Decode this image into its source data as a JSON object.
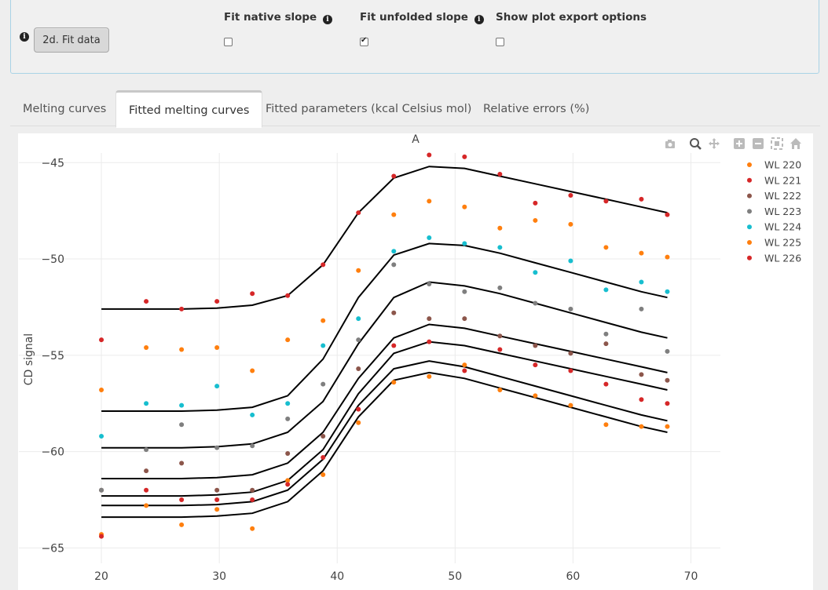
{
  "controls": {
    "fit_button_label": "2d. Fit data",
    "options": [
      {
        "label": "Fit native slope",
        "checked": false,
        "has_info": true
      },
      {
        "label": "Fit unfolded slope",
        "checked": true,
        "has_info": true
      },
      {
        "label": "Show plot export options",
        "checked": false,
        "has_info": false
      }
    ]
  },
  "tabs": [
    {
      "label": "Melting curves",
      "active": false
    },
    {
      "label": "Fitted melting curves",
      "active": true
    },
    {
      "label": "Fitted parameters (kcal Celsius mol)",
      "active": false
    },
    {
      "label": "Relative errors (%)",
      "active": false
    }
  ],
  "modebar": [
    "camera-icon",
    "zoom-icon",
    "pan-icon",
    "zoom-in-icon",
    "zoom-out-icon",
    "autoscale-icon",
    "reset-axes-icon"
  ],
  "chart_data": {
    "type": "scatter",
    "title": "A",
    "xlabel": "",
    "ylabel": "CD signal",
    "xlim": [
      13,
      72.5
    ],
    "ylim": [
      -65.8,
      -44.5
    ],
    "xticks": [
      20,
      30,
      40,
      50,
      60,
      70
    ],
    "yticks": [
      -45,
      -50,
      -55,
      -60,
      -65
    ],
    "grid": true,
    "legend_position": "top-right",
    "x": [
      20,
      23.8,
      26.8,
      29.8,
      32.8,
      35.8,
      38.8,
      41.8,
      44.8,
      47.8,
      50.8,
      53.8,
      56.8,
      59.8,
      62.8,
      65.8,
      68.0
    ],
    "series": [
      {
        "name": "WL 220",
        "color": "#ff7f0e",
        "values": [
          -64.3,
          -62.8,
          -63.8,
          -63.0,
          -64.0,
          -61.5,
          -61.2,
          -58.5,
          -56.4,
          -56.1,
          -55.5,
          -56.8,
          -57.1,
          -57.6,
          -58.6,
          -58.7,
          -58.7
        ],
        "fit": [
          -63.4,
          -63.4,
          -63.4,
          -63.35,
          -63.2,
          -62.6,
          -61.0,
          -58.2,
          -56.3,
          -55.9,
          -56.2,
          -56.7,
          -57.2,
          -57.7,
          -58.2,
          -58.7,
          -59.0
        ]
      },
      {
        "name": "WL 221",
        "color": "#d62728",
        "values": [
          -64.4,
          -62.0,
          -62.5,
          -62.5,
          -62.5,
          -61.7,
          -60.3,
          -57.8,
          -54.5,
          -54.3,
          -55.8,
          -54.7,
          -55.5,
          -55.8,
          -56.5,
          -57.3,
          -57.5
        ],
        "fit": [
          -62.8,
          -62.8,
          -62.8,
          -62.75,
          -62.6,
          -62.0,
          -60.4,
          -57.6,
          -55.7,
          -55.3,
          -55.6,
          -56.1,
          -56.6,
          -57.1,
          -57.6,
          -58.1,
          -58.4
        ]
      },
      {
        "name": "WL 222",
        "color": "#8c564b",
        "values": [
          -62.0,
          -61.0,
          -60.6,
          -62.0,
          -62.0,
          -60.1,
          -59.2,
          -55.7,
          -52.8,
          -53.1,
          -53.1,
          -54.0,
          -54.5,
          -54.9,
          -54.4,
          -56.0,
          -56.3
        ],
        "fit": [
          -62.3,
          -62.3,
          -62.3,
          -62.25,
          -62.1,
          -61.5,
          -59.9,
          -57.0,
          -54.9,
          -54.3,
          -54.5,
          -54.9,
          -55.3,
          -55.7,
          -56.1,
          -56.5,
          -56.8
        ]
      },
      {
        "name": "WL 223",
        "color": "#7f7f7f",
        "values": [
          -62.0,
          -59.9,
          -58.6,
          -59.8,
          -59.7,
          -58.3,
          -56.5,
          -54.2,
          -50.3,
          -51.3,
          -51.7,
          -51.5,
          -52.3,
          -52.6,
          -53.9,
          -52.6,
          -54.8
        ],
        "fit": [
          -61.4,
          -61.4,
          -61.4,
          -61.35,
          -61.2,
          -60.6,
          -59.0,
          -56.2,
          -54.1,
          -53.4,
          -53.6,
          -54.0,
          -54.4,
          -54.8,
          -55.2,
          -55.6,
          -55.9
        ]
      },
      {
        "name": "WL 224",
        "color": "#17becf",
        "values": [
          -59.2,
          -57.5,
          -57.6,
          -56.6,
          -58.1,
          -57.5,
          -54.5,
          -53.1,
          -49.6,
          -48.9,
          -49.2,
          -49.4,
          -50.7,
          -50.1,
          -51.6,
          -51.2,
          -51.7
        ],
        "fit": [
          -59.8,
          -59.8,
          -59.8,
          -59.75,
          -59.6,
          -59.0,
          -57.4,
          -54.4,
          -52.0,
          -51.2,
          -51.4,
          -51.8,
          -52.3,
          -52.8,
          -53.3,
          -53.8,
          -54.1
        ]
      },
      {
        "name": "WL 225",
        "color": "#ff7f0e",
        "values": [
          -56.8,
          -54.6,
          -54.7,
          -54.6,
          -55.8,
          -54.2,
          -53.2,
          -50.6,
          -47.7,
          -47.0,
          -47.3,
          -48.4,
          -48.0,
          -48.2,
          -49.4,
          -49.7,
          -49.9
        ],
        "fit": [
          -57.9,
          -57.9,
          -57.9,
          -57.85,
          -57.7,
          -57.1,
          -55.2,
          -52.0,
          -49.8,
          -49.2,
          -49.3,
          -49.7,
          -50.2,
          -50.7,
          -51.2,
          -51.7,
          -52.0
        ]
      },
      {
        "name": "WL 226",
        "color": "#d62728",
        "values": [
          -54.2,
          -52.2,
          -52.6,
          -52.2,
          -51.8,
          -51.9,
          -50.3,
          -47.6,
          -45.7,
          -44.6,
          -44.7,
          -45.6,
          -47.1,
          -46.7,
          -47.0,
          -46.9,
          -47.7
        ],
        "fit": [
          -52.6,
          -52.6,
          -52.6,
          -52.55,
          -52.4,
          -51.9,
          -50.3,
          -47.6,
          -45.8,
          -45.2,
          -45.3,
          -45.7,
          -46.1,
          -46.5,
          -46.9,
          -47.3,
          -47.6
        ]
      }
    ]
  }
}
